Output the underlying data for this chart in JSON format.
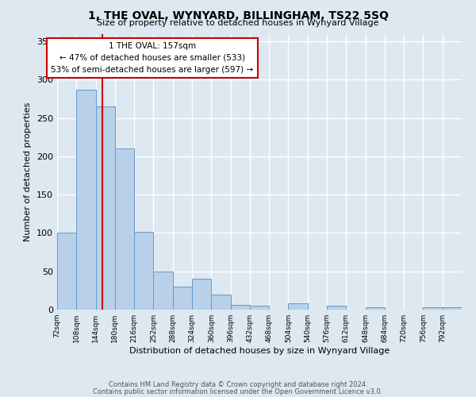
{
  "title": "1, THE OVAL, WYNYARD, BILLINGHAM, TS22 5SQ",
  "subtitle": "Size of property relative to detached houses in Wynyard Village",
  "xlabel": "Distribution of detached houses by size in Wynyard Village",
  "ylabel": "Number of detached properties",
  "bar_color": "#b8d0e8",
  "bar_edge_color": "#6699cc",
  "background_color": "#dde8f0",
  "grid_color": "#ffffff",
  "annotation_box_color": "#cc0000",
  "annotation_line1": "1 THE OVAL: 157sqm",
  "annotation_line2": "← 47% of detached houses are smaller (533)",
  "annotation_line3": "53% of semi-detached houses are larger (597) →",
  "vline_x": 157,
  "vline_color": "#cc0000",
  "bins_left_edges": [
    72,
    108,
    144,
    180,
    216,
    252,
    288,
    324,
    360,
    396,
    432,
    468,
    504,
    540,
    576,
    612,
    648,
    684,
    720,
    756,
    792
  ],
  "bin_width": 36,
  "bar_heights": [
    100,
    287,
    265,
    210,
    102,
    50,
    30,
    40,
    20,
    6,
    5,
    0,
    8,
    0,
    5,
    0,
    3,
    0,
    0,
    3,
    3
  ],
  "ylim": [
    0,
    360
  ],
  "yticks": [
    0,
    50,
    100,
    150,
    200,
    250,
    300,
    350
  ],
  "footnote1": "Contains HM Land Registry data © Crown copyright and database right 2024.",
  "footnote2": "Contains public sector information licensed under the Open Government Licence v3.0."
}
